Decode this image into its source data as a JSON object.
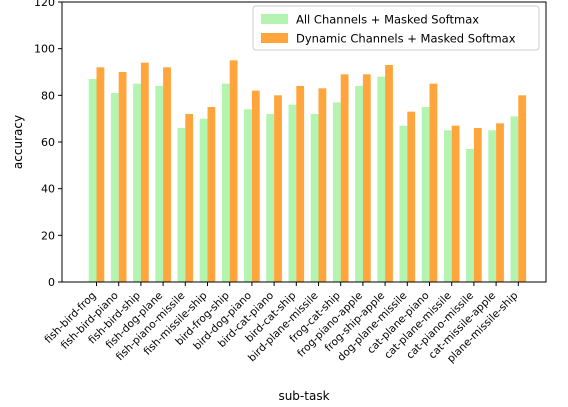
{
  "chart_data": {
    "type": "bar",
    "title": "",
    "xlabel": "sub-task",
    "ylabel": "accuracy",
    "ylim": [
      0,
      120
    ],
    "yticks": [
      0,
      20,
      40,
      60,
      80,
      100,
      120
    ],
    "grid": false,
    "legend_position": "top-right",
    "categories": [
      "fish-bird-frog",
      "fish-bird-piano",
      "fish-bird-ship",
      "fish-dog-plane",
      "fish-piano-missile",
      "fish-missile-ship",
      "bird-frog-ship",
      "bird-dog-piano",
      "bird-cat-piano",
      "bird-cat-ship",
      "bird-plane-missile",
      "frog-cat-ship",
      "frog-piano-apple",
      "frog-ship-apple",
      "dog-plane-missile",
      "cat-plane-piano",
      "cat-plane-missile",
      "cat-piano-missile",
      "cat-missile-apple",
      "plane-missile-ship"
    ],
    "series": [
      {
        "name": "All Channels + Masked Softmax",
        "color": "#b3f5b0",
        "values": [
          87,
          81,
          85,
          84,
          66,
          70,
          85,
          74,
          72,
          76,
          72,
          77,
          84,
          88,
          67,
          75,
          65,
          57,
          65,
          71
        ]
      },
      {
        "name": "Dynamic Channels + Masked Softmax",
        "color": "#ffa53c",
        "values": [
          92,
          90,
          94,
          92,
          72,
          75,
          95,
          82,
          80,
          84,
          83,
          89,
          89,
          93,
          73,
          85,
          67,
          66,
          68,
          80
        ]
      }
    ]
  }
}
